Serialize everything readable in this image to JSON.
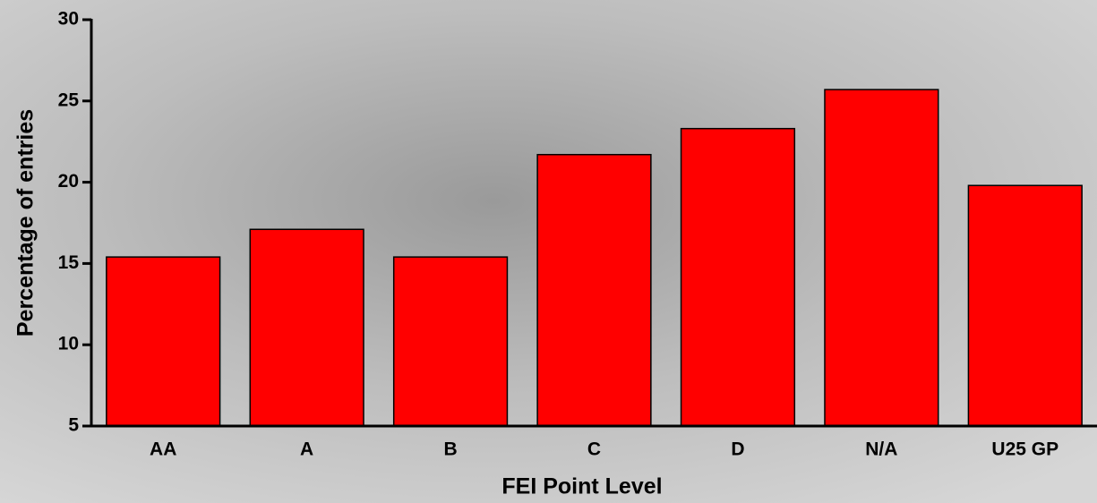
{
  "chart_data": {
    "type": "bar",
    "x_label": "FEI Point Level",
    "y_label": "Percentage of entries",
    "categories": [
      "AA",
      "A",
      "B",
      "C",
      "D",
      "N/A",
      "U25 GP"
    ],
    "values": [
      15.4,
      17.1,
      15.4,
      21.7,
      23.3,
      25.7,
      19.8
    ],
    "color": "#ff0000",
    "ylim": [
      5,
      30
    ],
    "yticks": [
      5,
      10,
      15,
      20,
      25,
      30
    ]
  }
}
